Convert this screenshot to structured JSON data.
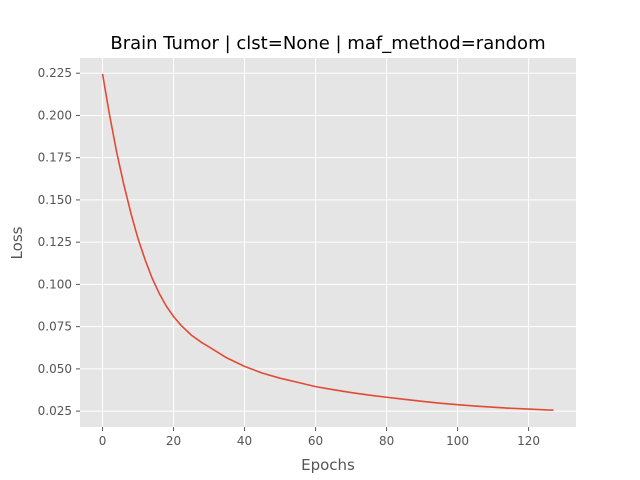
{
  "chart_data": {
    "type": "line",
    "title": "Brain Tumor | clst=None | maf_method=random",
    "xlabel": "Epochs",
    "ylabel": "Loss",
    "xlim": [
      -6.35,
      133.35
    ],
    "ylim": [
      0.0156,
      0.234
    ],
    "xticks": [
      0,
      20,
      40,
      60,
      80,
      100,
      120
    ],
    "xtick_labels": [
      "0",
      "20",
      "40",
      "60",
      "80",
      "100",
      "120"
    ],
    "yticks": [
      0.025,
      0.05,
      0.075,
      0.1,
      0.125,
      0.15,
      0.175,
      0.2,
      0.225
    ],
    "ytick_labels": [
      "0.025",
      "0.050",
      "0.075",
      "0.100",
      "0.125",
      "0.150",
      "0.175",
      "0.200",
      "0.225"
    ],
    "grid": true,
    "colors": {
      "background": "#e5e5e5",
      "grid": "#ffffff",
      "line": "#e24a33"
    },
    "series": [
      {
        "x": [
          0,
          2,
          4,
          6,
          8,
          10,
          12,
          14,
          16,
          18,
          20,
          22,
          25,
          28,
          30,
          35,
          40,
          45,
          50,
          55,
          60,
          65,
          70,
          75,
          80,
          85,
          90,
          95,
          100,
          105,
          110,
          115,
          120,
          125,
          127
        ],
        "values": [
          0.2245,
          0.2,
          0.178,
          0.159,
          0.142,
          0.127,
          0.1145,
          0.1035,
          0.0945,
          0.087,
          0.081,
          0.076,
          0.07,
          0.0655,
          0.063,
          0.0565,
          0.0515,
          0.0475,
          0.0445,
          0.042,
          0.0395,
          0.0377,
          0.036,
          0.0345,
          0.0332,
          0.032,
          0.0308,
          0.0297,
          0.0288,
          0.028,
          0.0273,
          0.0267,
          0.0262,
          0.0257,
          0.0256
        ]
      }
    ]
  }
}
